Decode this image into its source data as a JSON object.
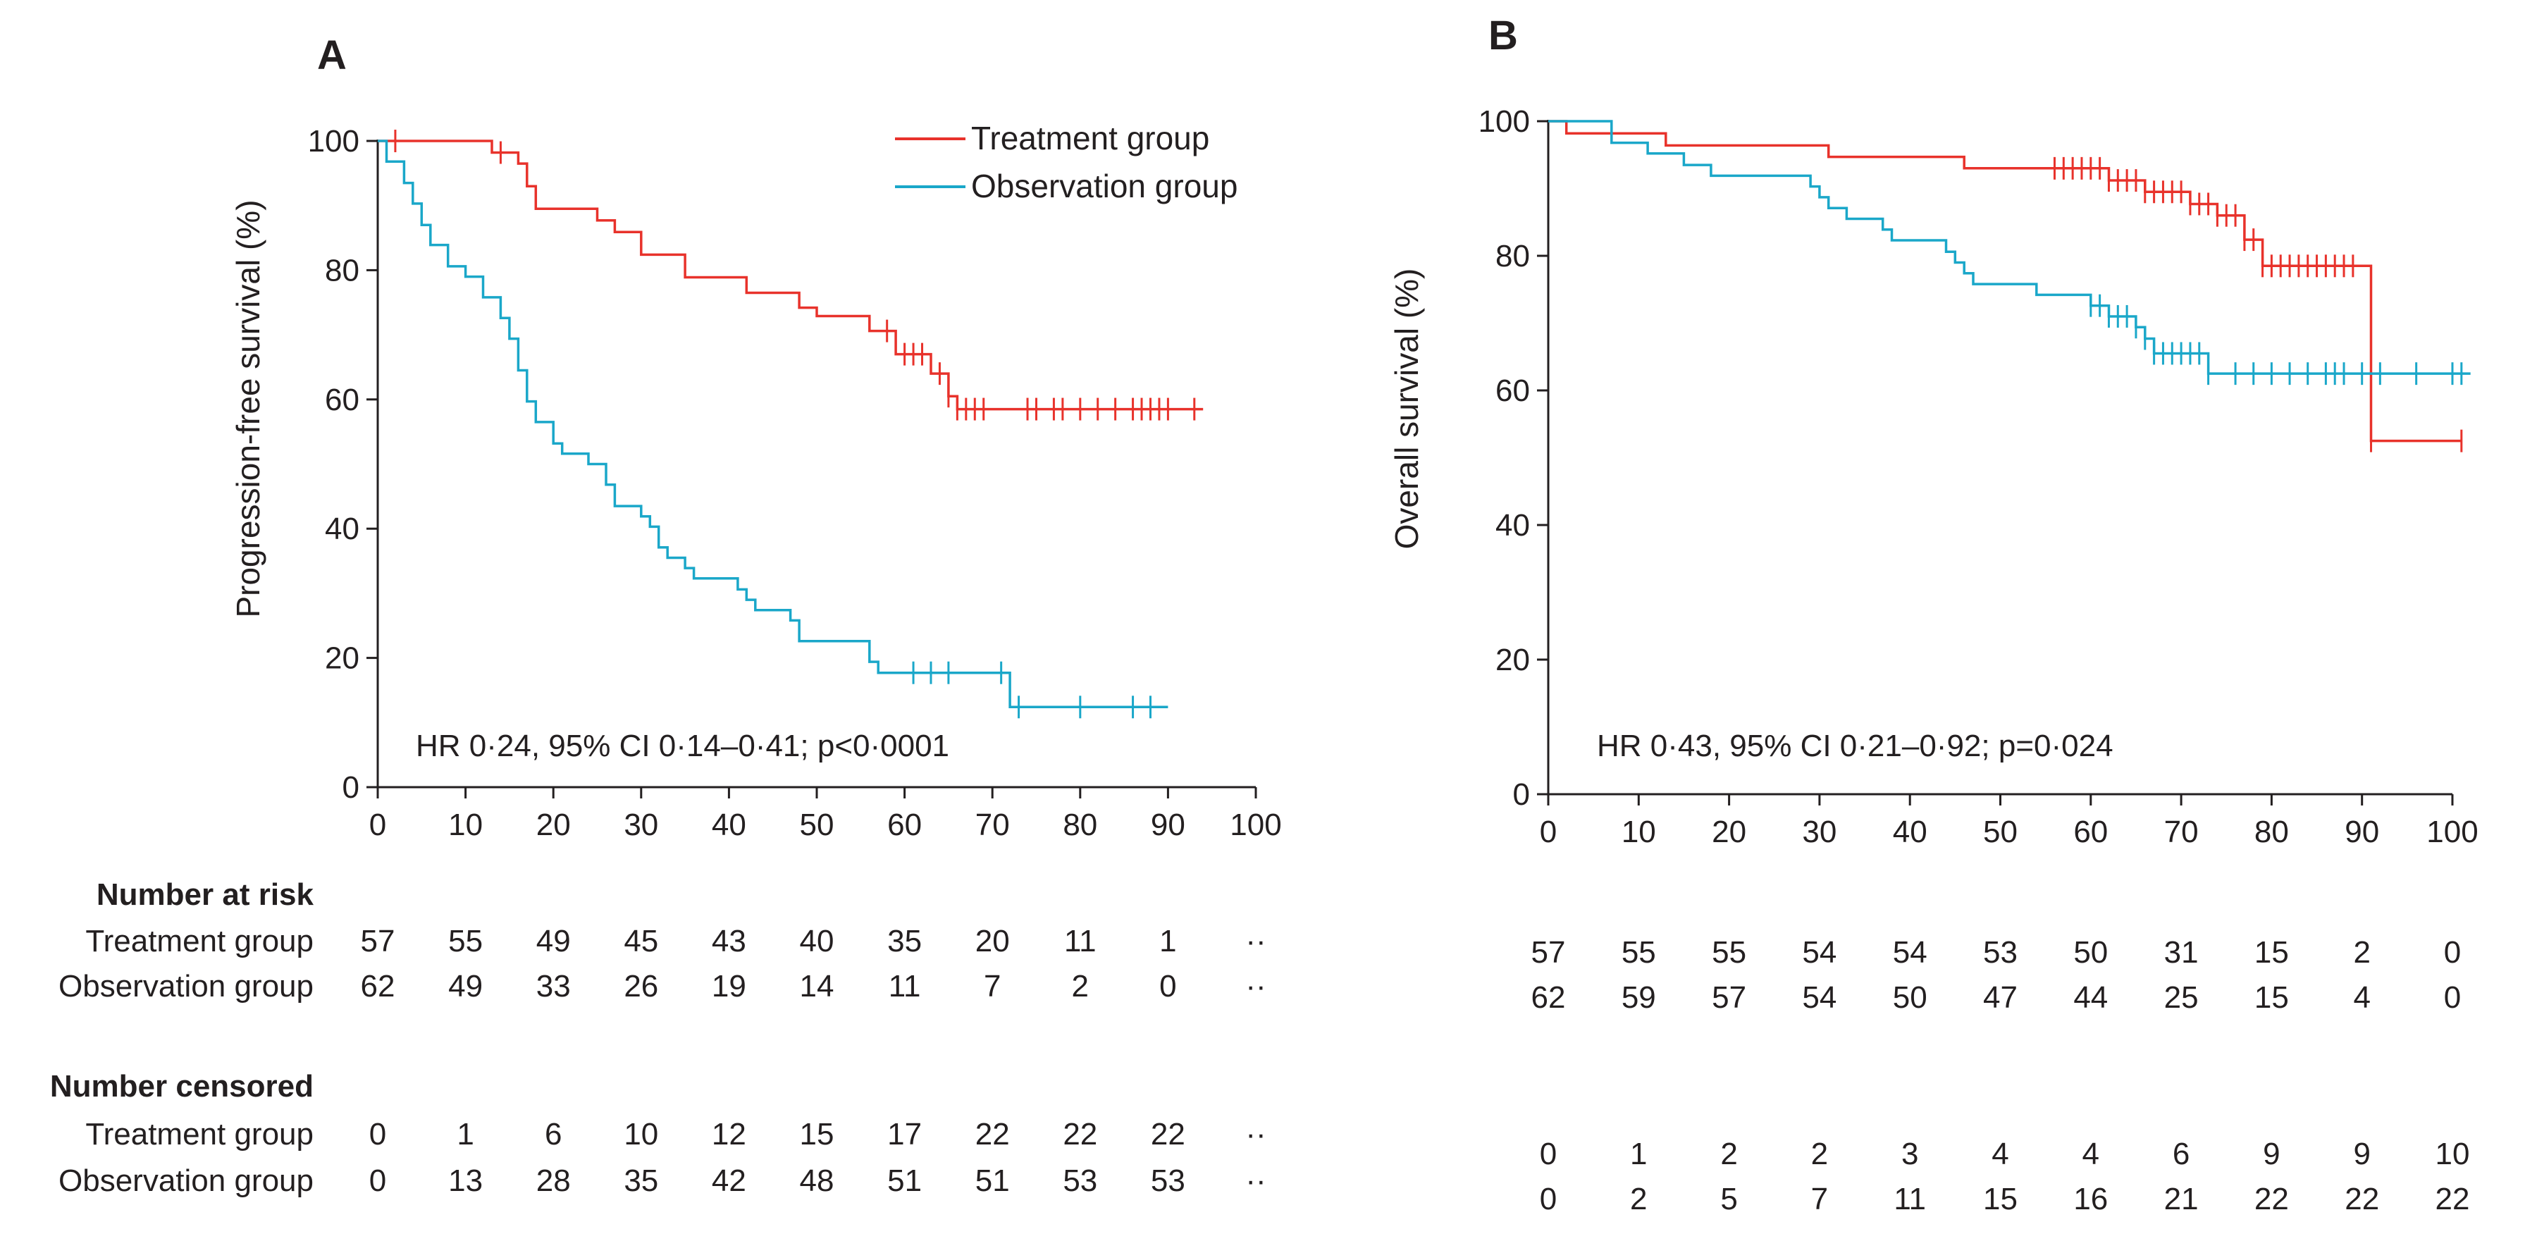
{
  "colors": {
    "treatment": "#e8322b",
    "observation": "#1aa7c9",
    "text": "#231f20"
  },
  "chart_data": [
    {
      "type": "line",
      "panel": "A",
      "ylabel": "Progression-free survival (%)",
      "xlabel": "",
      "xlim": [
        0,
        100
      ],
      "ylim": [
        0,
        100
      ],
      "x_ticks": [
        0,
        10,
        20,
        30,
        40,
        50,
        60,
        70,
        80,
        90,
        100
      ],
      "y_ticks": [
        0,
        20,
        40,
        60,
        80,
        100
      ],
      "annotation": "HR 0·24, 95% CI 0·14–0·41; p<0·0001",
      "legend": [
        "Treatment group",
        "Observation group"
      ],
      "series": [
        {
          "name": "Treatment group",
          "color": "#e8322b",
          "points": [
            [
              0,
              100
            ],
            [
              13,
              100
            ],
            [
              13,
              98.2
            ],
            [
              16,
              98.2
            ],
            [
              16,
              96.5
            ],
            [
              17,
              96.5
            ],
            [
              17,
              93
            ],
            [
              18,
              93
            ],
            [
              18,
              89.5
            ],
            [
              25,
              89.5
            ],
            [
              25,
              87.7
            ],
            [
              27,
              87.7
            ],
            [
              27,
              85.9
            ],
            [
              30,
              85.9
            ],
            [
              30,
              82.4
            ],
            [
              35,
              82.4
            ],
            [
              35,
              78.9
            ],
            [
              42,
              78.9
            ],
            [
              42,
              76.5
            ],
            [
              48,
              76.5
            ],
            [
              48,
              74.2
            ],
            [
              50,
              74.2
            ],
            [
              50,
              72.9
            ],
            [
              56,
              72.9
            ],
            [
              56,
              70.6
            ],
            [
              59,
              70.6
            ],
            [
              59,
              67
            ],
            [
              63,
              67
            ],
            [
              63,
              64
            ],
            [
              65,
              64
            ],
            [
              65,
              60.5
            ],
            [
              66,
              60.5
            ],
            [
              66,
              58.5
            ],
            [
              94,
              58.5
            ]
          ],
          "censor_x": [
            2,
            14,
            58,
            60,
            61,
            62,
            64,
            65,
            66,
            67,
            68,
            69,
            74,
            75,
            77,
            78,
            80,
            82,
            84,
            86,
            87,
            88,
            89,
            90,
            93
          ],
          "risk_numbers": [
            "57",
            "55",
            "49",
            "45",
            "43",
            "40",
            "35",
            "20",
            "11",
            "1",
            "··"
          ],
          "censored_numbers": [
            "0",
            "1",
            "6",
            "10",
            "12",
            "15",
            "17",
            "22",
            "22",
            "22",
            "··"
          ]
        },
        {
          "name": "Observation group",
          "color": "#1aa7c9",
          "points": [
            [
              0,
              100
            ],
            [
              1,
              100
            ],
            [
              1,
              96.8
            ],
            [
              3,
              96.8
            ],
            [
              3,
              93.5
            ],
            [
              4,
              93.5
            ],
            [
              4,
              90.3
            ],
            [
              5,
              90.3
            ],
            [
              5,
              87
            ],
            [
              6,
              87
            ],
            [
              6,
              83.9
            ],
            [
              8,
              83.9
            ],
            [
              8,
              80.6
            ],
            [
              10,
              80.6
            ],
            [
              10,
              79
            ],
            [
              12,
              79
            ],
            [
              12,
              75.8
            ],
            [
              14,
              75.8
            ],
            [
              14,
              72.6
            ],
            [
              15,
              72.6
            ],
            [
              15,
              69.4
            ],
            [
              16,
              69.4
            ],
            [
              16,
              64.5
            ],
            [
              17,
              64.5
            ],
            [
              17,
              59.7
            ],
            [
              18,
              59.7
            ],
            [
              18,
              56.5
            ],
            [
              20,
              56.5
            ],
            [
              20,
              53.2
            ],
            [
              21,
              53.2
            ],
            [
              21,
              51.6
            ],
            [
              24,
              51.6
            ],
            [
              24,
              50
            ],
            [
              26,
              50
            ],
            [
              26,
              46.8
            ],
            [
              27,
              46.8
            ],
            [
              27,
              43.5
            ],
            [
              30,
              43.5
            ],
            [
              30,
              41.9
            ],
            [
              31,
              41.9
            ],
            [
              31,
              40.3
            ],
            [
              32,
              40.3
            ],
            [
              32,
              37.1
            ],
            [
              33,
              37.1
            ],
            [
              33,
              35.5
            ],
            [
              35,
              35.5
            ],
            [
              35,
              33.9
            ],
            [
              36,
              33.9
            ],
            [
              36,
              32.3
            ],
            [
              41,
              32.3
            ],
            [
              41,
              30.6
            ],
            [
              42,
              30.6
            ],
            [
              42,
              29
            ],
            [
              43,
              29
            ],
            [
              43,
              27.4
            ],
            [
              47,
              27.4
            ],
            [
              47,
              25.8
            ],
            [
              48,
              25.8
            ],
            [
              48,
              22.6
            ],
            [
              56,
              22.6
            ],
            [
              56,
              19.4
            ],
            [
              57,
              19.4
            ],
            [
              57,
              17.7
            ],
            [
              72,
              17.7
            ],
            [
              72,
              12.4
            ],
            [
              90,
              12.4
            ]
          ],
          "censor_x": [
            61,
            63,
            65,
            71,
            73,
            80,
            86,
            88
          ],
          "risk_numbers": [
            "62",
            "49",
            "33",
            "26",
            "19",
            "14",
            "11",
            "7",
            "2",
            "0",
            "··"
          ],
          "censored_numbers": [
            "0",
            "13",
            "28",
            "35",
            "42",
            "48",
            "51",
            "51",
            "53",
            "53",
            "··"
          ]
        }
      ]
    },
    {
      "type": "line",
      "panel": "B",
      "ylabel": "Overall survival (%)",
      "xlabel": "",
      "xlim": [
        0,
        100
      ],
      "ylim": [
        0,
        100
      ],
      "x_ticks": [
        0,
        10,
        20,
        30,
        40,
        50,
        60,
        70,
        80,
        90,
        100
      ],
      "y_ticks": [
        0,
        20,
        40,
        60,
        80,
        100
      ],
      "annotation": "HR 0·43, 95% CI 0·21–0·92; p=0·024",
      "series": [
        {
          "name": "Treatment group",
          "color": "#e8322b",
          "points": [
            [
              0,
              100
            ],
            [
              2,
              100
            ],
            [
              2,
              98.2
            ],
            [
              13,
              98.2
            ],
            [
              13,
              96.4
            ],
            [
              31,
              96.4
            ],
            [
              31,
              94.7
            ],
            [
              46,
              94.7
            ],
            [
              46,
              93
            ],
            [
              62,
              93
            ],
            [
              62,
              91.2
            ],
            [
              66,
              91.2
            ],
            [
              66,
              89.5
            ],
            [
              71,
              89.5
            ],
            [
              71,
              87.7
            ],
            [
              74,
              87.7
            ],
            [
              74,
              86
            ],
            [
              77,
              86
            ],
            [
              77,
              82.4
            ],
            [
              79,
              82.4
            ],
            [
              79,
              78.5
            ],
            [
              91,
              78.5
            ],
            [
              91,
              52.5
            ],
            [
              101,
              52.5
            ]
          ],
          "censor_x": [
            56,
            57,
            58,
            59,
            60,
            61,
            62,
            63,
            64,
            65,
            66,
            67,
            68,
            69,
            70,
            71,
            72,
            73,
            74,
            75,
            76,
            77,
            78,
            79,
            80,
            81,
            82,
            83,
            84,
            85,
            86,
            87,
            88,
            89,
            91,
            101
          ],
          "risk_numbers": [
            "57",
            "55",
            "55",
            "54",
            "54",
            "53",
            "50",
            "31",
            "15",
            "2",
            "0"
          ],
          "censored_numbers": [
            "0",
            "1",
            "2",
            "2",
            "3",
            "4",
            "4",
            "6",
            "9",
            "9",
            "10"
          ]
        },
        {
          "name": "Observation group",
          "color": "#1aa7c9",
          "points": [
            [
              0,
              100
            ],
            [
              7,
              100
            ],
            [
              7,
              96.8
            ],
            [
              11,
              96.8
            ],
            [
              11,
              95.2
            ],
            [
              15,
              95.2
            ],
            [
              15,
              93.5
            ],
            [
              18,
              93.5
            ],
            [
              18,
              91.9
            ],
            [
              29,
              91.9
            ],
            [
              29,
              90.3
            ],
            [
              30,
              90.3
            ],
            [
              30,
              88.7
            ],
            [
              31,
              88.7
            ],
            [
              31,
              87.1
            ],
            [
              33,
              87.1
            ],
            [
              33,
              85.5
            ],
            [
              37,
              85.5
            ],
            [
              37,
              83.9
            ],
            [
              38,
              83.9
            ],
            [
              38,
              82.3
            ],
            [
              44,
              82.3
            ],
            [
              44,
              80.6
            ],
            [
              45,
              80.6
            ],
            [
              45,
              79
            ],
            [
              46,
              79
            ],
            [
              46,
              77.4
            ],
            [
              47,
              77.4
            ],
            [
              47,
              75.8
            ],
            [
              54,
              75.8
            ],
            [
              54,
              74.2
            ],
            [
              60,
              74.2
            ],
            [
              60,
              72.6
            ],
            [
              62,
              72.6
            ],
            [
              62,
              71
            ],
            [
              65,
              71
            ],
            [
              65,
              69.4
            ],
            [
              66,
              69.4
            ],
            [
              66,
              67.7
            ],
            [
              67,
              67.7
            ],
            [
              67,
              65.5
            ],
            [
              73,
              65.5
            ],
            [
              73,
              62.5
            ],
            [
              102,
              62.5
            ]
          ],
          "censor_x": [
            60,
            61,
            62,
            63,
            64,
            65,
            66,
            67,
            68,
            69,
            70,
            71,
            72,
            73,
            76,
            78,
            80,
            82,
            84,
            86,
            87,
            88,
            90,
            92,
            96,
            100,
            101
          ],
          "risk_numbers": [
            "62",
            "59",
            "57",
            "54",
            "50",
            "47",
            "44",
            "25",
            "15",
            "4",
            "0"
          ],
          "censored_numbers": [
            "0",
            "2",
            "5",
            "7",
            "11",
            "15",
            "16",
            "21",
            "22",
            "22",
            "22"
          ]
        }
      ]
    }
  ],
  "panels": {
    "A": {
      "letter": "A"
    },
    "B": {
      "letter": "B"
    }
  },
  "legend": {
    "treatment": "Treatment group",
    "observation": "Observation group"
  },
  "tables": {
    "risk_title": "Number at risk",
    "censored_title": "Number censored",
    "treatment_label": "Treatment group",
    "observation_label": "Observation group"
  }
}
